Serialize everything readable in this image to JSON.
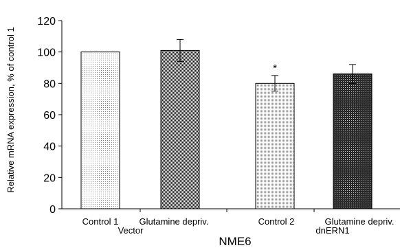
{
  "chart_data": {
    "type": "bar",
    "title": "",
    "xlabel": "NME6",
    "ylabel": "Relative mRNA expression, % of control 1",
    "ylim": [
      0,
      120
    ],
    "yticks": [
      "0",
      "20",
      "40",
      "60",
      "80",
      "100",
      "120"
    ],
    "grid": false,
    "legend": "none",
    "categories": [
      "Control 1",
      "Glutamine depriv.",
      "Control 2",
      "Glutamine depriv."
    ],
    "values": [
      100,
      101,
      80,
      86
    ],
    "errors": [
      0,
      7,
      5,
      6
    ],
    "patterns": [
      "light-dots",
      "dense-checker",
      "medium-dots",
      "dense-grid"
    ],
    "significance": [
      "",
      "",
      "*",
      ""
    ],
    "groups": [
      {
        "label": "Vector",
        "categories": [
          0,
          1
        ]
      },
      {
        "label": "dnERN1",
        "categories": [
          2,
          3
        ]
      }
    ]
  }
}
